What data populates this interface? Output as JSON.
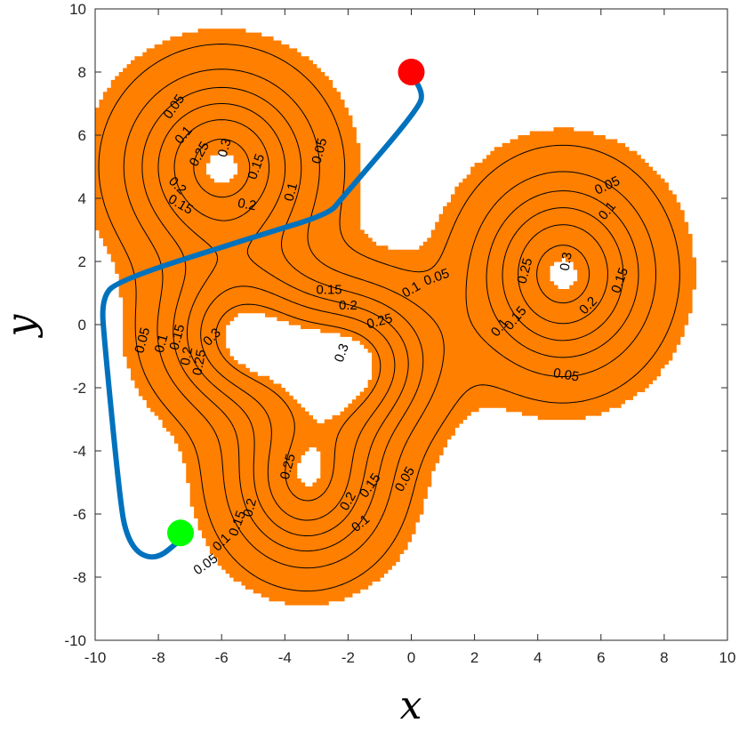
{
  "chart_data": {
    "type": "contour",
    "xlabel": "x",
    "ylabel": "y",
    "xlim": [
      -10,
      10
    ],
    "ylim": [
      -10,
      10
    ],
    "xticks": [
      -10,
      -8,
      -6,
      -4,
      -2,
      0,
      2,
      4,
      6,
      8,
      10
    ],
    "yticks": [
      -10,
      -8,
      -6,
      -4,
      -2,
      0,
      2,
      4,
      6,
      8,
      10
    ],
    "xtick_labels": [
      "-10",
      "-8",
      "-6",
      "-4",
      "-2",
      "0",
      "2",
      "4",
      "6",
      "8",
      "10"
    ],
    "ytick_labels": [
      "-10",
      "-8",
      "-6",
      "-4",
      "-2",
      "0",
      "2",
      "4",
      "6",
      "8",
      "10"
    ],
    "grid": false,
    "contour_levels": [
      0.05,
      0.1,
      0.15,
      0.2,
      0.25,
      0.3
    ],
    "peaks": [
      {
        "x": -6.0,
        "y": 5.0,
        "height": 0.33
      },
      {
        "x": 4.8,
        "y": 1.6,
        "height": 0.33
      },
      {
        "x": -5.4,
        "y": -0.4,
        "height": 0.31
      },
      {
        "x": -3.3,
        "y": -5.0,
        "height": 0.31
      },
      {
        "x": -1.8,
        "y": -1.2,
        "height": 0.31
      }
    ],
    "contour_labels": [
      {
        "text": "0.05",
        "x": -7.5,
        "y": 6.9,
        "angle": -55
      },
      {
        "text": "0.1",
        "x": -7.2,
        "y": 6.0,
        "angle": -50
      },
      {
        "text": "0.25",
        "x": -6.7,
        "y": 5.4,
        "angle": -60
      },
      {
        "text": "0.3",
        "x": -5.9,
        "y": 5.6,
        "angle": -75
      },
      {
        "text": "0.2",
        "x": -7.4,
        "y": 4.4,
        "angle": 45
      },
      {
        "text": "0.15",
        "x": -7.3,
        "y": 3.8,
        "angle": 30
      },
      {
        "text": "0.2",
        "x": -5.2,
        "y": 3.8,
        "angle": 10
      },
      {
        "text": "0.15",
        "x": -4.9,
        "y": 5.0,
        "angle": -70
      },
      {
        "text": "0.1",
        "x": -3.8,
        "y": 4.2,
        "angle": -75
      },
      {
        "text": "0.05",
        "x": -2.9,
        "y": 5.5,
        "angle": -75
      },
      {
        "text": "0.05",
        "x": 0.8,
        "y": 1.5,
        "angle": -20
      },
      {
        "text": "0.15",
        "x": -2.6,
        "y": 1.1,
        "angle": 0
      },
      {
        "text": "0.2",
        "x": -2.0,
        "y": 0.6,
        "angle": 0
      },
      {
        "text": "0.1",
        "x": 0.0,
        "y": 1.1,
        "angle": -30
      },
      {
        "text": "0.25",
        "x": -1.0,
        "y": 0.1,
        "angle": -15
      },
      {
        "text": "0.3",
        "x": -2.2,
        "y": -0.9,
        "angle": -70
      },
      {
        "text": "0.3",
        "x": -6.3,
        "y": -0.4,
        "angle": -45
      },
      {
        "text": "0.05",
        "x": -8.5,
        "y": -0.5,
        "angle": -75
      },
      {
        "text": "0.1",
        "x": -7.9,
        "y": -0.6,
        "angle": -75
      },
      {
        "text": "0.15",
        "x": -7.4,
        "y": -0.4,
        "angle": -75
      },
      {
        "text": "0.2",
        "x": -7.1,
        "y": -1.0,
        "angle": -80
      },
      {
        "text": "0.25",
        "x": -6.7,
        "y": -1.2,
        "angle": -80
      },
      {
        "text": "0.25",
        "x": -3.9,
        "y": -4.5,
        "angle": -75
      },
      {
        "text": "0.2",
        "x": -2.0,
        "y": -5.6,
        "angle": -60
      },
      {
        "text": "0.15",
        "x": -1.3,
        "y": -5.1,
        "angle": -55
      },
      {
        "text": "0.1",
        "x": -1.6,
        "y": -6.3,
        "angle": -40
      },
      {
        "text": "0.05",
        "x": -0.2,
        "y": -4.9,
        "angle": -60
      },
      {
        "text": "0.2",
        "x": -5.1,
        "y": -5.8,
        "angle": -75
      },
      {
        "text": "0.15",
        "x": -5.5,
        "y": -6.3,
        "angle": -70
      },
      {
        "text": "0.1",
        "x": -6.0,
        "y": -6.9,
        "angle": -45
      },
      {
        "text": "0.05",
        "x": -6.5,
        "y": -7.6,
        "angle": -35
      },
      {
        "text": "0.05",
        "x": 6.2,
        "y": 4.4,
        "angle": -25
      },
      {
        "text": "0.1",
        "x": 6.2,
        "y": 3.6,
        "angle": -50
      },
      {
        "text": "0.25",
        "x": 3.6,
        "y": 1.7,
        "angle": -75
      },
      {
        "text": "0.3",
        "x": 4.9,
        "y": 2.0,
        "angle": -80
      },
      {
        "text": "0.15",
        "x": 6.6,
        "y": 1.4,
        "angle": -70
      },
      {
        "text": "0.2",
        "x": 5.6,
        "y": 0.6,
        "angle": -45
      },
      {
        "text": "0.15",
        "x": 3.3,
        "y": 0.2,
        "angle": -50
      },
      {
        "text": "0.1",
        "x": 2.8,
        "y": -0.1,
        "angle": -50
      },
      {
        "text": "0.05",
        "x": 4.9,
        "y": -1.6,
        "angle": 10
      }
    ],
    "path": {
      "color": "#0072bd",
      "points": [
        [
          0.0,
          7.9
        ],
        [
          0.4,
          7.4
        ],
        [
          0.2,
          6.8
        ],
        [
          -2.2,
          4.0
        ],
        [
          -2.6,
          3.5
        ],
        [
          -4.9,
          2.8
        ],
        [
          -9.3,
          1.4
        ],
        [
          -9.8,
          0.8
        ],
        [
          -9.7,
          -0.6
        ],
        [
          -9.2,
          -5.7
        ],
        [
          -9.0,
          -6.7
        ],
        [
          -8.6,
          -7.3
        ],
        [
          -8.0,
          -7.4
        ],
        [
          -7.4,
          -6.9
        ]
      ]
    },
    "start_point": {
      "x": 0.0,
      "y": 8.0,
      "color": "#ff0000"
    },
    "end_point": {
      "x": -7.3,
      "y": -6.6,
      "color": "#00ff00"
    },
    "fill_color": "#ff7f00",
    "fill_threshold": 0.03
  }
}
